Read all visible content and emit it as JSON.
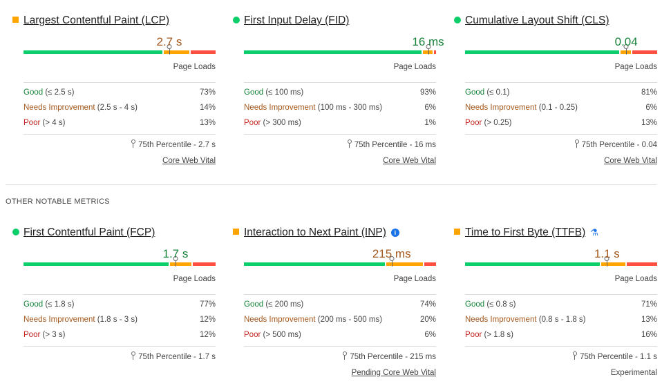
{
  "section_label": "OTHER NOTABLE METRICS",
  "page_loads_label": "Page Loads",
  "colors": {
    "good": "#0cce6b",
    "needs_improvement": "#ffa400",
    "poor": "#ff4e42"
  },
  "metrics": [
    {
      "title": "Largest Contentful Paint (LCP)",
      "indicator": "square",
      "value": "2.7 s",
      "rating": "ni",
      "distribution": [
        73,
        14,
        13
      ],
      "rows": [
        {
          "label": "Good",
          "range": "(≤ 2.5 s)",
          "pct": "73%"
        },
        {
          "label": "Needs Improvement",
          "range": "(2.5 s - 4 s)",
          "pct": "14%"
        },
        {
          "label": "Poor",
          "range": "(> 4 s)",
          "pct": "13%"
        }
      ],
      "percentile": "75th Percentile - 2.7 s",
      "link": "Core Web Vital",
      "link_underlined": true,
      "icon": ""
    },
    {
      "title": "First Input Delay (FID)",
      "indicator": "circle",
      "value": "16 ms",
      "rating": "good",
      "distribution": [
        93,
        6,
        1
      ],
      "rows": [
        {
          "label": "Good",
          "range": "(≤ 100 ms)",
          "pct": "93%"
        },
        {
          "label": "Needs Improvement",
          "range": "(100 ms - 300 ms)",
          "pct": "6%"
        },
        {
          "label": "Poor",
          "range": "(> 300 ms)",
          "pct": "1%"
        }
      ],
      "percentile": "75th Percentile - 16 ms",
      "link": "Core Web Vital",
      "link_underlined": true,
      "icon": ""
    },
    {
      "title": "Cumulative Layout Shift (CLS)",
      "indicator": "circle",
      "value": "0.04",
      "rating": "good",
      "distribution": [
        81,
        6,
        13
      ],
      "rows": [
        {
          "label": "Good",
          "range": "(≤ 0.1)",
          "pct": "81%"
        },
        {
          "label": "Needs Improvement",
          "range": "(0.1 - 0.25)",
          "pct": "6%"
        },
        {
          "label": "Poor",
          "range": "(> 0.25)",
          "pct": "13%"
        }
      ],
      "percentile": "75th Percentile - 0.04",
      "link": "Core Web Vital",
      "link_underlined": true,
      "icon": ""
    },
    {
      "title": "First Contentful Paint (FCP)",
      "indicator": "circle",
      "value": "1.7 s",
      "rating": "good",
      "distribution": [
        77,
        12,
        12
      ],
      "rows": [
        {
          "label": "Good",
          "range": "(≤ 1.8 s)",
          "pct": "77%"
        },
        {
          "label": "Needs Improvement",
          "range": "(1.8 s - 3 s)",
          "pct": "12%"
        },
        {
          "label": "Poor",
          "range": "(> 3 s)",
          "pct": "12%"
        }
      ],
      "percentile": "75th Percentile - 1.7 s",
      "link": "",
      "link_underlined": false,
      "icon": ""
    },
    {
      "title": "Interaction to Next Paint (INP)",
      "indicator": "square",
      "value": "215 ms",
      "rating": "ni",
      "distribution": [
        74,
        20,
        6
      ],
      "rows": [
        {
          "label": "Good",
          "range": "(≤ 200 ms)",
          "pct": "74%"
        },
        {
          "label": "Needs Improvement",
          "range": "(200 ms - 500 ms)",
          "pct": "20%"
        },
        {
          "label": "Poor",
          "range": "(> 500 ms)",
          "pct": "6%"
        }
      ],
      "percentile": "75th Percentile - 215 ms",
      "link": "Pending Core Web Vital",
      "link_underlined": true,
      "icon": "info"
    },
    {
      "title": "Time to First Byte (TTFB)",
      "indicator": "square",
      "value": "1.1 s",
      "rating": "ni",
      "distribution": [
        71,
        13,
        16
      ],
      "rows": [
        {
          "label": "Good",
          "range": "(≤ 0.8 s)",
          "pct": "71%"
        },
        {
          "label": "Needs Improvement",
          "range": "(0.8 s - 1.8 s)",
          "pct": "13%"
        },
        {
          "label": "Poor",
          "range": "(> 1.8 s)",
          "pct": "16%"
        }
      ],
      "percentile": "75th Percentile - 1.1 s",
      "link": "Experimental",
      "link_underlined": false,
      "icon": "flask"
    }
  ]
}
